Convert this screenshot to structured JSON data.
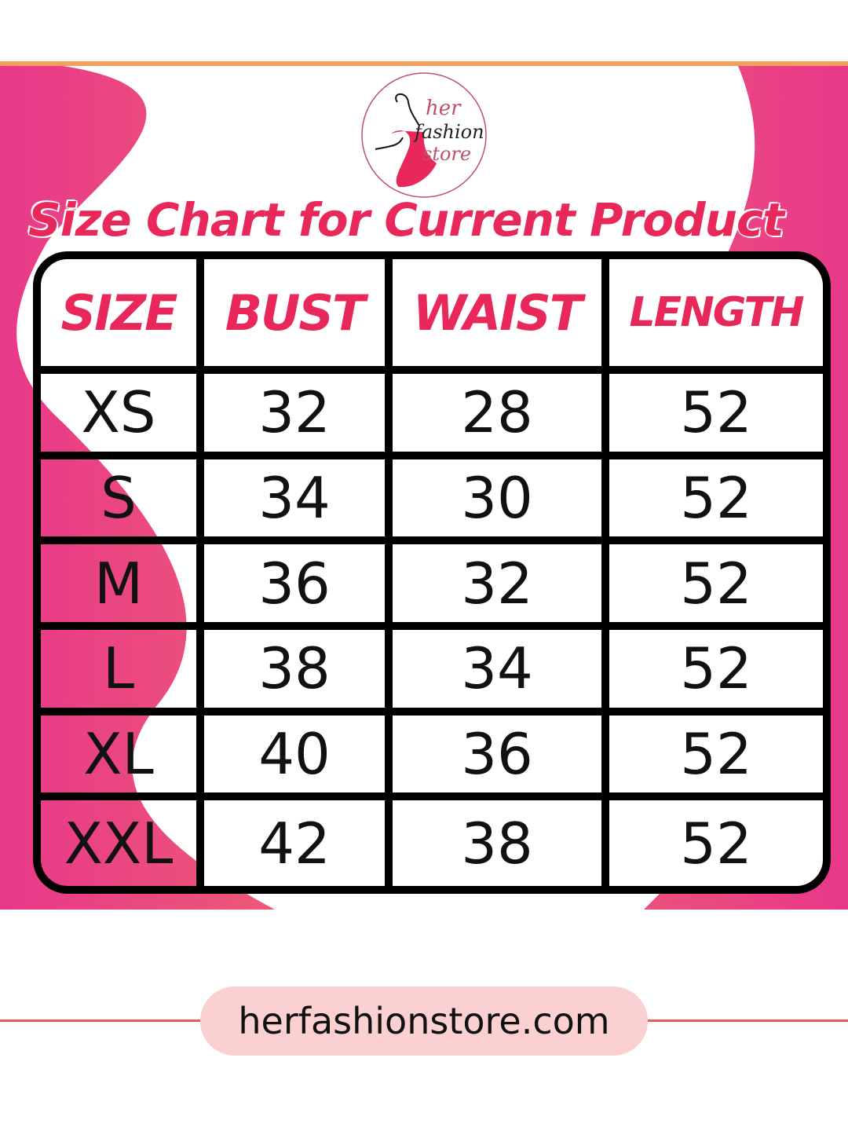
{
  "brand": {
    "logo_text": "her fashion store",
    "colors": {
      "accent": "#e8285a",
      "pink": "#e8388a",
      "orange": "#f47c5c"
    }
  },
  "title": "Size Chart for Current Product",
  "table": {
    "headers": [
      "SIZE",
      "BUST",
      "WAIST",
      "LENGTH"
    ],
    "rows": [
      [
        "XS",
        "32",
        "28",
        "52"
      ],
      [
        "S",
        "34",
        "30",
        "52"
      ],
      [
        "M",
        "36",
        "32",
        "52"
      ],
      [
        "L",
        "38",
        "34",
        "52"
      ],
      [
        "XL",
        "40",
        "36",
        "52"
      ],
      [
        "XXL",
        "42",
        "38",
        "52"
      ]
    ]
  },
  "footer": {
    "website": "herfashionstore.com"
  }
}
